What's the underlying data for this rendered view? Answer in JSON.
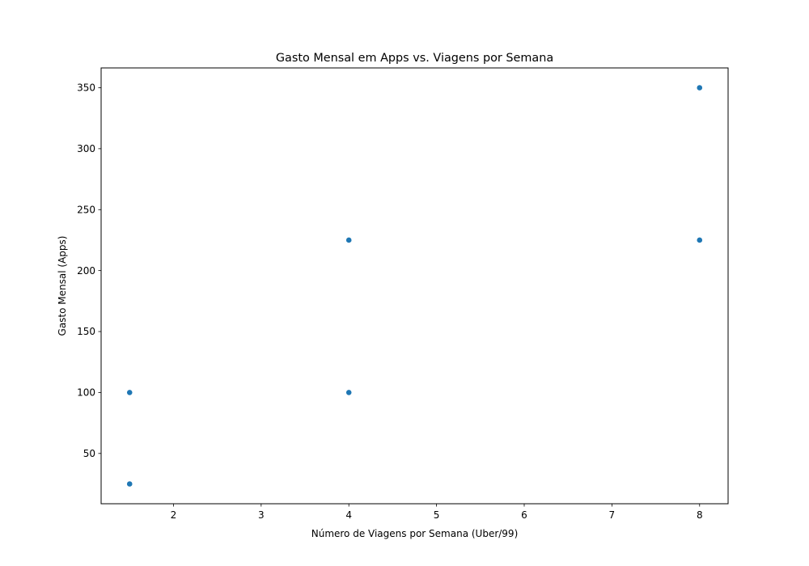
{
  "chart_data": {
    "type": "scatter",
    "title": "Gasto Mensal em Apps vs. Viagens por Semana",
    "xlabel": "Número de Viagens por Semana (Uber/99)",
    "ylabel": "Gasto Mensal (Apps)",
    "xlim": [
      1.175,
      8.325
    ],
    "ylim": [
      8.75,
      366.25
    ],
    "xticks": [
      2,
      3,
      4,
      5,
      6,
      7,
      8
    ],
    "yticks": [
      50,
      100,
      150,
      200,
      250,
      300,
      350
    ],
    "grid": false,
    "legend": "none",
    "series": [
      {
        "color": "#1f77b4",
        "points": [
          {
            "x": 1.5,
            "y": 25
          },
          {
            "x": 1.5,
            "y": 100
          },
          {
            "x": 4,
            "y": 100
          },
          {
            "x": 4,
            "y": 225
          },
          {
            "x": 8,
            "y": 225
          },
          {
            "x": 8,
            "y": 350
          }
        ]
      }
    ]
  }
}
